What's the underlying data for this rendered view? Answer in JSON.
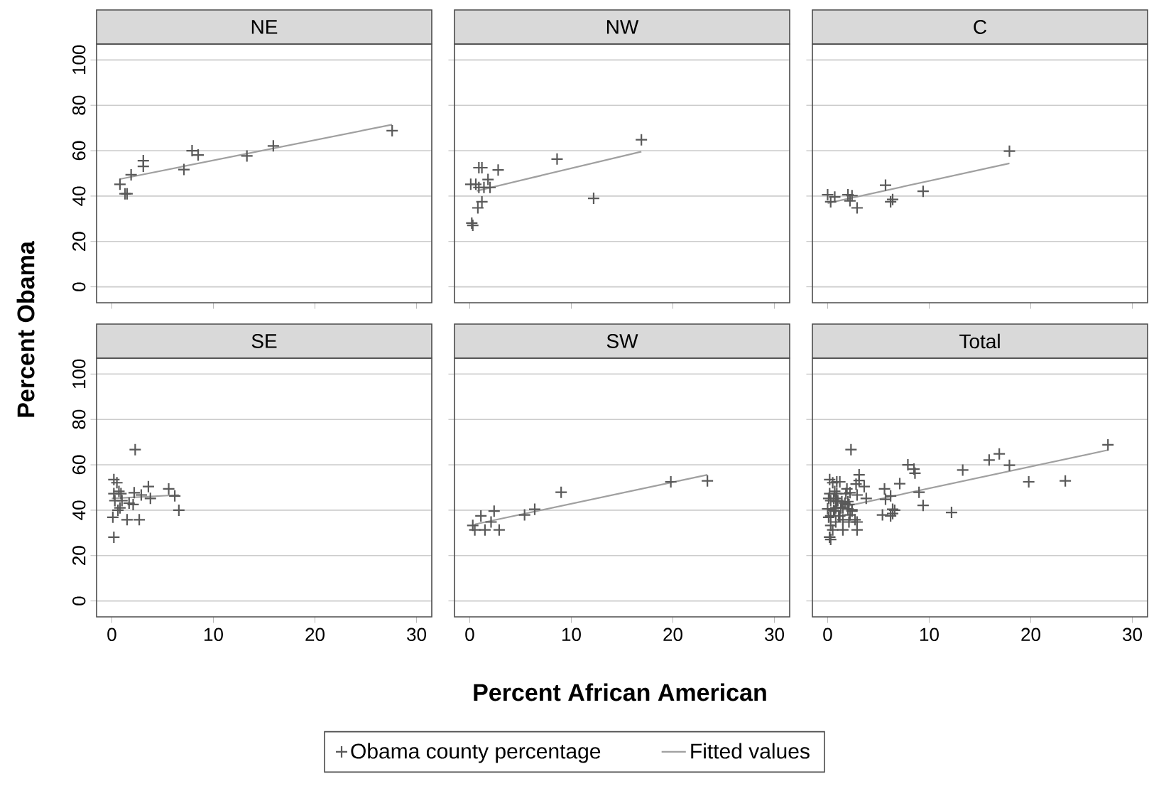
{
  "chart_data": [
    {
      "type": "scatter",
      "title": "NE",
      "ylabel": "Percent Obama",
      "xlim": [
        -1.5,
        31.5
      ],
      "ylim": [
        -7,
        107
      ],
      "xticks": [
        0,
        10,
        20,
        30
      ],
      "yticks": [
        0,
        20,
        40,
        60,
        80,
        100
      ],
      "grid": "y",
      "tick_labels": "y",
      "series": [
        {
          "type": "scatter",
          "marker": "cross",
          "color": "#595959",
          "x": [
            0.8,
            1.3,
            1.5,
            1.9,
            3.1,
            3.1,
            7.1,
            7.9,
            8.5,
            13.3,
            15.9,
            27.6
          ],
          "values": [
            45.2,
            41.0,
            41.0,
            49.4,
            55.6,
            53.1,
            51.7,
            60.0,
            58.1,
            57.7,
            62.1,
            68.8
          ]
        },
        {
          "type": "line",
          "marker": "none",
          "color": "#a0a0a0",
          "x": [
            0.8,
            27.6
          ],
          "values": [
            47.5,
            71.5
          ]
        }
      ]
    },
    {
      "type": "scatter",
      "title": "NW",
      "xlim": [
        -1.5,
        31.5
      ],
      "ylim": [
        -7,
        107
      ],
      "xticks": [
        0,
        10,
        20,
        30
      ],
      "yticks": [
        0,
        20,
        40,
        60,
        80,
        100
      ],
      "grid": "y",
      "tick_labels": false,
      "series": [
        {
          "type": "scatter",
          "marker": "cross",
          "color": "#595959",
          "x": [
            0.2,
            0.3,
            0.9,
            1.2,
            2.8,
            0.1,
            0.6,
            0.9,
            1.4,
            1.8,
            2.0,
            1.2,
            0.8,
            8.6,
            12.2,
            16.9
          ],
          "values": [
            28.1,
            27.1,
            52.5,
            52.5,
            51.5,
            45.2,
            45.2,
            43.8,
            43.8,
            47.3,
            43.8,
            37.5,
            34.8,
            56.3,
            39.0,
            64.8
          ]
        },
        {
          "type": "line",
          "marker": "none",
          "color": "#a0a0a0",
          "x": [
            0.7,
            16.9
          ],
          "values": [
            42.3,
            59.6
          ]
        }
      ]
    },
    {
      "type": "scatter",
      "title": "C",
      "xlim": [
        -1.5,
        31.5
      ],
      "ylim": [
        -7,
        107
      ],
      "xticks": [
        0,
        10,
        20,
        30
      ],
      "yticks": [
        0,
        20,
        40,
        60,
        80,
        100
      ],
      "grid": "y",
      "tick_labels": false,
      "series": [
        {
          "type": "scatter",
          "marker": "cross",
          "color": "#595959",
          "x": [
            0,
            0.3,
            0.7,
            2.0,
            2.4,
            2.2,
            2.9,
            5.7,
            6.2,
            6.4,
            9.4,
            17.9
          ],
          "values": [
            40.6,
            37.5,
            39.6,
            40.6,
            40.2,
            37.9,
            34.8,
            44.8,
            37.5,
            38.5,
            42.1,
            59.8
          ]
        },
        {
          "type": "line",
          "marker": "none",
          "color": "#a0a0a0",
          "x": [
            0,
            17.9
          ],
          "values": [
            36.9,
            54.4
          ]
        }
      ]
    },
    {
      "type": "scatter",
      "title": "SE",
      "xlim": [
        -1.5,
        31.5
      ],
      "ylim": [
        -7,
        107
      ],
      "xticks": [
        0,
        10,
        20,
        30
      ],
      "yticks": [
        0,
        20,
        40,
        60,
        80,
        100
      ],
      "grid": "y",
      "series": [
        {
          "type": "scatter",
          "marker": "cross",
          "color": "#595959",
          "x": [
            2.3,
            0.2,
            0.5,
            0.2,
            0.7,
            0.9,
            0.3,
            1.0,
            1.7,
            2.1,
            2.2,
            2.9,
            3.6,
            3.8,
            5.6,
            6.2,
            6.6,
            0.6,
            0.8,
            0.1,
            1.5,
            2.7,
            0.2
          ],
          "values": [
            66.7,
            53.5,
            52.1,
            47.3,
            48.3,
            47.3,
            44.2,
            44.2,
            43.1,
            42.5,
            47.7,
            46.7,
            50.4,
            45.2,
            49.4,
            46.3,
            40.0,
            40.0,
            41.0,
            36.9,
            35.8,
            35.8,
            28.1
          ]
        },
        {
          "type": "line",
          "marker": "none",
          "color": "#a0a0a0",
          "x": [
            0,
            6.6
          ],
          "values": [
            45.2,
            46.7
          ]
        }
      ]
    },
    {
      "type": "scatter",
      "title": "SW",
      "xlabel": "Percent African American",
      "xlim": [
        -1.5,
        31.5
      ],
      "ylim": [
        -7,
        107
      ],
      "xticks": [
        0,
        10,
        20,
        30
      ],
      "yticks": [
        0,
        20,
        40,
        60,
        80,
        100
      ],
      "grid": "y",
      "tick_labels": "x",
      "series": [
        {
          "type": "scatter",
          "marker": "cross",
          "color": "#595959",
          "x": [
            0.3,
            0.5,
            1.1,
            1.5,
            2.1,
            2.4,
            2.9,
            5.4,
            6.4,
            9.0,
            19.8,
            23.4
          ],
          "values": [
            33.3,
            31.3,
            37.5,
            31.3,
            34.8,
            39.6,
            31.3,
            37.9,
            40.4,
            47.9,
            52.5,
            52.9
          ]
        },
        {
          "type": "line",
          "marker": "none",
          "color": "#a0a0a0",
          "x": [
            0.5,
            23.4
          ],
          "values": [
            33.8,
            55.6
          ]
        }
      ]
    },
    {
      "type": "scatter",
      "title": "Total",
      "xlim": [
        -1.5,
        31.5
      ],
      "ylim": [
        -7,
        107
      ],
      "xticks": [
        0,
        10,
        20,
        30
      ],
      "yticks": [
        0,
        20,
        40,
        60,
        80,
        100
      ],
      "grid": "y",
      "tick_labels": "x",
      "legend": "bottom",
      "series": [
        {
          "type": "scatter",
          "marker": "cross",
          "name": "Obama county percentage",
          "color": "#595959",
          "x": [
            0.8,
            1.3,
            1.5,
            1.9,
            3.1,
            3.1,
            7.1,
            7.9,
            8.5,
            13.3,
            15.9,
            27.6,
            0.2,
            0.3,
            0.9,
            1.2,
            2.8,
            0.1,
            0.6,
            0.9,
            1.4,
            1.8,
            2.0,
            1.2,
            0.8,
            8.6,
            12.2,
            16.9,
            0,
            0.3,
            0.7,
            2.0,
            2.4,
            2.2,
            2.9,
            5.7,
            6.2,
            6.4,
            9.4,
            17.9,
            2.3,
            0.2,
            0.5,
            0.2,
            0.7,
            0.9,
            0.3,
            1.0,
            1.7,
            2.1,
            2.2,
            2.9,
            3.6,
            3.8,
            5.6,
            6.2,
            6.6,
            0.6,
            0.8,
            0.1,
            1.5,
            2.7,
            0.2,
            0.3,
            0.5,
            1.1,
            1.5,
            2.1,
            2.4,
            2.9,
            5.4,
            6.4,
            9.0,
            19.8,
            23.4
          ],
          "values": [
            45.2,
            41.0,
            41.0,
            49.4,
            55.6,
            53.1,
            51.7,
            60.0,
            58.1,
            57.7,
            62.1,
            68.8,
            28.1,
            27.1,
            52.5,
            52.5,
            51.5,
            45.2,
            45.2,
            43.8,
            43.8,
            47.3,
            43.8,
            37.5,
            34.8,
            56.3,
            39.0,
            64.8,
            40.6,
            37.5,
            39.6,
            40.6,
            40.2,
            37.9,
            34.8,
            44.8,
            37.5,
            38.5,
            42.1,
            59.8,
            66.7,
            53.5,
            52.1,
            47.3,
            48.3,
            47.3,
            44.2,
            44.2,
            43.1,
            42.5,
            47.7,
            46.7,
            50.4,
            45.2,
            49.4,
            46.3,
            40.0,
            40.0,
            41.0,
            36.9,
            35.8,
            35.8,
            28.1,
            33.3,
            31.3,
            37.5,
            31.3,
            34.8,
            39.6,
            31.3,
            37.9,
            40.4,
            47.9,
            52.5,
            52.9
          ]
        },
        {
          "type": "line",
          "marker": "none",
          "name": "Fitted values",
          "color": "#a0a0a0",
          "x": [
            0,
            27.6
          ],
          "values": [
            40.0,
            66.5
          ]
        }
      ]
    }
  ]
}
